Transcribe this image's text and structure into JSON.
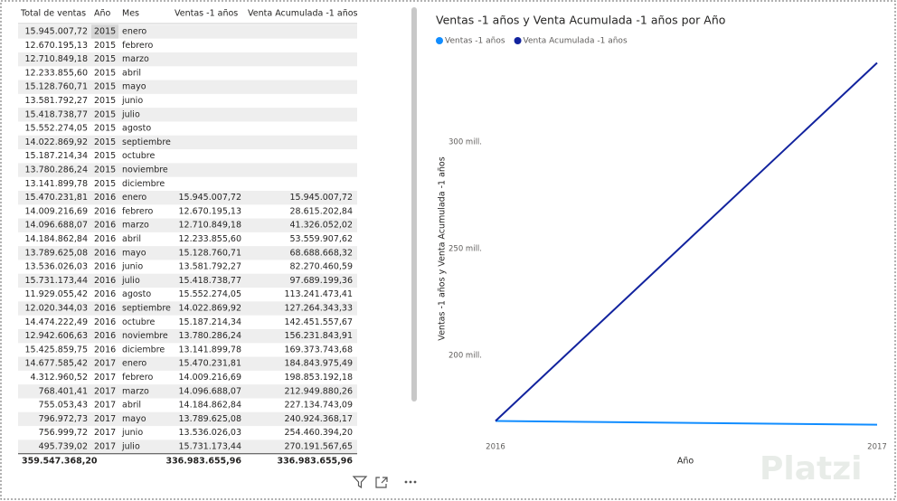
{
  "table": {
    "headers": [
      "Total de ventas",
      "Año",
      "Mes",
      "Ventas -1 años",
      "Venta Acumulada -1 años"
    ],
    "rows": [
      [
        "15.945.007,72",
        "2015",
        "enero",
        null,
        null
      ],
      [
        "12.670.195,13",
        "2015",
        "febrero",
        null,
        null
      ],
      [
        "12.710.849,18",
        "2015",
        "marzo",
        null,
        null
      ],
      [
        "12.233.855,60",
        "2015",
        "abril",
        null,
        null
      ],
      [
        "15.128.760,71",
        "2015",
        "mayo",
        null,
        null
      ],
      [
        "13.581.792,27",
        "2015",
        "junio",
        null,
        null
      ],
      [
        "15.418.738,77",
        "2015",
        "julio",
        null,
        null
      ],
      [
        "15.552.274,05",
        "2015",
        "agosto",
        null,
        null
      ],
      [
        "14.022.869,92",
        "2015",
        "septiembre",
        null,
        null
      ],
      [
        "15.187.214,34",
        "2015",
        "octubre",
        null,
        null
      ],
      [
        "13.780.286,24",
        "2015",
        "noviembre",
        null,
        null
      ],
      [
        "13.141.899,78",
        "2015",
        "diciembre",
        null,
        null
      ],
      [
        "15.470.231,81",
        "2016",
        "enero",
        "15.945.007,72",
        "15.945.007,72"
      ],
      [
        "14.009.216,69",
        "2016",
        "febrero",
        "12.670.195,13",
        "28.615.202,84"
      ],
      [
        "14.096.688,07",
        "2016",
        "marzo",
        "12.710.849,18",
        "41.326.052,02"
      ],
      [
        "14.184.862,84",
        "2016",
        "abril",
        "12.233.855,60",
        "53.559.907,62"
      ],
      [
        "13.789.625,08",
        "2016",
        "mayo",
        "15.128.760,71",
        "68.688.668,32"
      ],
      [
        "13.536.026,03",
        "2016",
        "junio",
        "13.581.792,27",
        "82.270.460,59"
      ],
      [
        "15.731.173,44",
        "2016",
        "julio",
        "15.418.738,77",
        "97.689.199,36"
      ],
      [
        "11.929.055,42",
        "2016",
        "agosto",
        "15.552.274,05",
        "113.241.473,41"
      ],
      [
        "12.020.344,03",
        "2016",
        "septiembre",
        "14.022.869,92",
        "127.264.343,33"
      ],
      [
        "14.474.222,49",
        "2016",
        "octubre",
        "15.187.214,34",
        "142.451.557,67"
      ],
      [
        "12.942.606,63",
        "2016",
        "noviembre",
        "13.780.286,24",
        "156.231.843,91"
      ],
      [
        "15.425.859,75",
        "2016",
        "diciembre",
        "13.141.899,78",
        "169.373.743,68"
      ],
      [
        "14.677.585,42",
        "2017",
        "enero",
        "15.470.231,81",
        "184.843.975,49"
      ],
      [
        "4.312.960,52",
        "2017",
        "febrero",
        "14.009.216,69",
        "198.853.192,18"
      ],
      [
        "768.401,41",
        "2017",
        "marzo",
        "14.096.688,07",
        "212.949.880,26"
      ],
      [
        "755.053,43",
        "2017",
        "abril",
        "14.184.862,84",
        "227.134.743,09"
      ],
      [
        "796.972,73",
        "2017",
        "mayo",
        "13.789.625,08",
        "240.924.368,17"
      ],
      [
        "756.999,72",
        "2017",
        "junio",
        "13.536.026,03",
        "254.460.394,20"
      ],
      [
        "495.739,02",
        "2017",
        "julio",
        "15.731.173,44",
        "270.191.567,65"
      ]
    ],
    "totals": [
      "359.547.368,20",
      null,
      null,
      "336.983.655,96",
      "336.983.655,96"
    ]
  },
  "chart_data": {
    "type": "line",
    "title": "Ventas -1 años y Venta Acumulada -1 años por Año",
    "x_label": "Año",
    "y_label": "Ventas -1 años y Venta Acumulada -1 años",
    "x": [
      2016,
      2017
    ],
    "xlim": [
      2016,
      2017
    ],
    "xticks": [
      2016,
      2017
    ],
    "ylim": [
      159000000,
      341000000
    ],
    "yticks": [
      {
        "value": 200000000,
        "label": "200 mill."
      },
      {
        "value": 250000000,
        "label": "250 mill."
      },
      {
        "value": 300000000,
        "label": "300 mill."
      }
    ],
    "series": [
      {
        "name": "Ventas -1 años",
        "color": "#118DFF",
        "values": [
          169373743.68,
          167609912.28
        ]
      },
      {
        "name": "Venta Acumulada -1 años",
        "color": "#12239E",
        "values": [
          169373743.68,
          336983655.96
        ]
      }
    ]
  },
  "watermark": "Platzi"
}
